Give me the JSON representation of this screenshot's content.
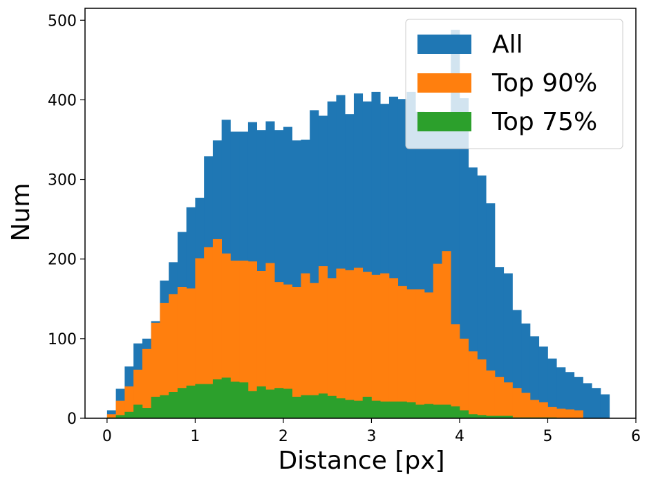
{
  "chart_data": {
    "type": "bar",
    "subtype": "overlaid-histogram",
    "xlabel": "Distance [px]",
    "ylabel": "Num",
    "xlim": [
      -0.25,
      6.0
    ],
    "ylim": [
      0,
      515
    ],
    "xticks": [
      "0",
      "1",
      "2",
      "3",
      "4",
      "5",
      "6"
    ],
    "yticks": [
      "0",
      "100",
      "200",
      "300",
      "400",
      "500"
    ],
    "legend_position": "top-right",
    "bin_start": 0.0,
    "bin_width": 0.1,
    "series": [
      {
        "name": "All",
        "color": "#1f77b4",
        "values": [
          10,
          37,
          65,
          94,
          100,
          122,
          173,
          196,
          234,
          265,
          277,
          329,
          349,
          375,
          360,
          360,
          372,
          362,
          373,
          362,
          366,
          349,
          350,
          387,
          380,
          398,
          406,
          382,
          408,
          398,
          410,
          395,
          404,
          401,
          410,
          385,
          383,
          372,
          369,
          488,
          402,
          315,
          305,
          270,
          190,
          182,
          136,
          119,
          103,
          90,
          75,
          64,
          58,
          52,
          44,
          38,
          30
        ]
      },
      {
        "name": "Top 90%",
        "color": "#ff7f0e",
        "values": [
          5,
          22,
          40,
          61,
          87,
          120,
          145,
          156,
          165,
          163,
          201,
          215,
          225,
          207,
          198,
          198,
          197,
          185,
          195,
          171,
          168,
          165,
          182,
          170,
          191,
          176,
          188,
          186,
          189,
          184,
          180,
          182,
          176,
          166,
          162,
          162,
          158,
          194,
          210,
          118,
          100,
          84,
          74,
          60,
          52,
          45,
          38,
          32,
          23,
          20,
          14,
          12,
          11,
          10
        ]
      },
      {
        "name": "Top 75%",
        "color": "#2ca02c",
        "values": [
          1,
          4,
          8,
          17,
          13,
          27,
          29,
          33,
          38,
          41,
          43,
          43,
          49,
          51,
          46,
          45,
          34,
          40,
          36,
          38,
          37,
          27,
          29,
          29,
          31,
          28,
          25,
          23,
          22,
          27,
          22,
          21,
          21,
          21,
          20,
          17,
          18,
          17,
          17,
          15,
          10,
          5,
          4,
          3,
          3,
          3,
          1,
          1,
          1,
          1,
          1,
          0,
          0,
          0,
          0,
          0,
          0
        ]
      }
    ]
  }
}
